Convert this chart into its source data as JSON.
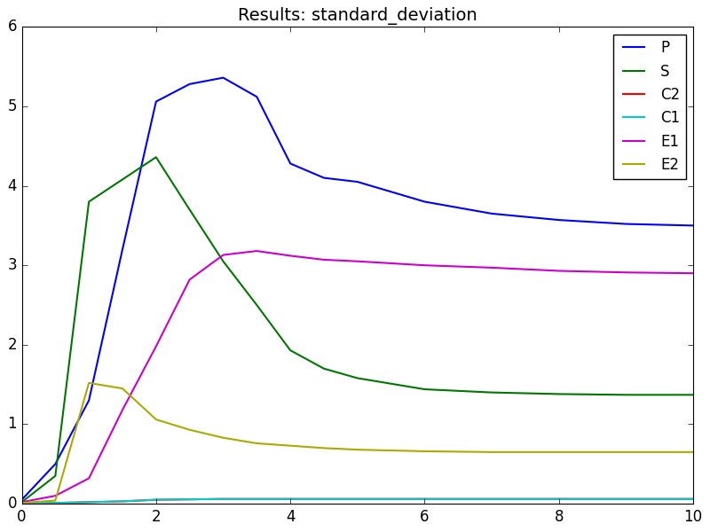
{
  "title": "Results: standard_deviation",
  "xlim": [
    0,
    10
  ],
  "ylim": [
    0,
    6
  ],
  "xticks": [
    0,
    2,
    4,
    6,
    8,
    10
  ],
  "yticks": [
    0,
    1,
    2,
    3,
    4,
    5,
    6
  ],
  "background_color": "#ffffff",
  "series": {
    "P": {
      "color": "#0000ff",
      "x": [
        0,
        0.5,
        1.0,
        1.5,
        2.0,
        2.5,
        3.0,
        3.5,
        4.0,
        4.5,
        5.0,
        6.0,
        7.0,
        8.0,
        9.0,
        10.0
      ],
      "y": [
        0.05,
        0.5,
        1.3,
        3.2,
        5.06,
        5.28,
        5.36,
        5.12,
        4.28,
        4.1,
        4.05,
        3.8,
        3.65,
        3.57,
        3.52,
        3.5
      ]
    },
    "S": {
      "color": "#007700",
      "x": [
        0,
        0.5,
        1.0,
        1.5,
        2.0,
        2.5,
        3.0,
        3.5,
        4.0,
        4.5,
        5.0,
        6.0,
        7.0,
        8.0,
        9.0,
        10.0
      ],
      "y": [
        0.02,
        0.35,
        3.8,
        4.08,
        4.36,
        3.7,
        3.05,
        2.5,
        1.93,
        1.7,
        1.58,
        1.44,
        1.4,
        1.38,
        1.37,
        1.37
      ]
    },
    "C2": {
      "color": "#ff0000",
      "x": [
        0,
        0.5,
        1.0,
        1.5,
        2.0,
        3.0,
        4.0,
        5.0,
        6.0,
        7.0,
        8.0,
        9.0,
        10.0
      ],
      "y": [
        0.0,
        0.01,
        0.02,
        0.03,
        0.05,
        0.06,
        0.06,
        0.06,
        0.06,
        0.06,
        0.06,
        0.06,
        0.06
      ]
    },
    "C1": {
      "color": "#00cccc",
      "x": [
        0,
        0.5,
        1.0,
        1.5,
        2.0,
        3.0,
        4.0,
        5.0,
        6.0,
        7.0,
        8.0,
        9.0,
        10.0
      ],
      "y": [
        0.0,
        0.01,
        0.02,
        0.03,
        0.05,
        0.06,
        0.06,
        0.06,
        0.06,
        0.06,
        0.06,
        0.06,
        0.06
      ]
    },
    "E1": {
      "color": "#cc00cc",
      "x": [
        0,
        0.5,
        1.0,
        1.5,
        2.0,
        2.5,
        3.0,
        3.5,
        4.0,
        4.5,
        5.0,
        6.0,
        7.0,
        8.0,
        9.0,
        10.0
      ],
      "y": [
        0.02,
        0.1,
        0.32,
        1.18,
        1.98,
        2.82,
        3.13,
        3.18,
        3.12,
        3.07,
        3.05,
        3.0,
        2.97,
        2.93,
        2.91,
        2.9
      ]
    },
    "E2": {
      "color": "#aaaa00",
      "x": [
        0,
        0.5,
        1.0,
        1.5,
        2.0,
        2.5,
        3.0,
        3.5,
        4.0,
        4.5,
        5.0,
        6.0,
        7.0,
        8.0,
        9.0,
        10.0
      ],
      "y": [
        0.01,
        0.04,
        1.52,
        1.45,
        1.06,
        0.93,
        0.83,
        0.76,
        0.73,
        0.7,
        0.68,
        0.66,
        0.65,
        0.65,
        0.65,
        0.65
      ]
    }
  },
  "legend_loc": "upper right",
  "legend_order": [
    "P",
    "S",
    "C2",
    "C1",
    "E1",
    "E2"
  ],
  "figsize": [
    8.0,
    6.0
  ],
  "dpi": 100
}
